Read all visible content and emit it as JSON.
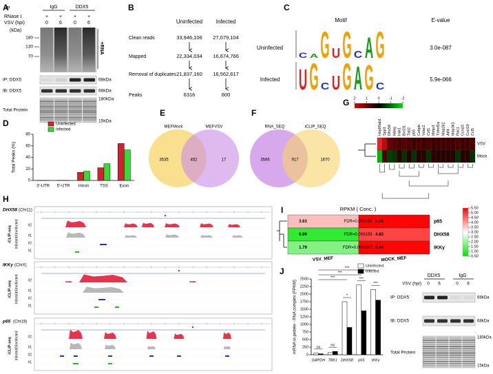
{
  "panel_labels": [
    "A",
    "B",
    "C",
    "D",
    "E",
    "F",
    "G",
    "H",
    "I",
    "J"
  ],
  "panel_a": {
    "ip": "IP",
    "igg": "IgG",
    "ddx5": "DDX5",
    "rnase": "RNase I",
    "plus": [
      "+",
      "+",
      "+",
      "+"
    ],
    "vsv": "VSV (hpi)",
    "hpi": [
      "0",
      "6",
      "0",
      "6"
    ],
    "kda": "(kDa)",
    "markers": [
      "180",
      "130",
      "70"
    ],
    "rna": "+RNA",
    "ip_label": "IP: DDX5",
    "ip_size": "68kDa",
    "ib_label": "IB: DDX5",
    "ib_size": "68kDa",
    "total_label": "Total Protein",
    "total_top": "180kDa",
    "total_bottom": "15kDa"
  },
  "panel_b": {
    "headers": [
      "Uninfected",
      "Infected"
    ],
    "rows": [
      [
        "Clean reads",
        "33,946,106",
        "27,079,104"
      ],
      [
        "Mapped",
        "22,334,034",
        "16,674,766"
      ],
      [
        "Removal of duplicates",
        "21,837,160",
        "16,562,617"
      ],
      [
        "Peaks",
        "6316",
        "600"
      ]
    ]
  },
  "panel_c": {
    "headers": [
      "Motif",
      "E-value"
    ],
    "rows": [
      {
        "name": "Uninfected",
        "letters": [
          "C",
          "A",
          "G",
          "U",
          "G",
          "C",
          "A",
          "G"
        ],
        "evalue": "3.0e-087"
      },
      {
        "name": "Infected",
        "letters": [
          "U",
          "G",
          "C",
          "U",
          "G",
          "A",
          "G",
          "C"
        ],
        "evalue": "5.9e-066"
      }
    ]
  },
  "panel_e": {
    "sets": [
      "MEFMock",
      "MEFVSV"
    ],
    "counts": [
      3535,
      452,
      17
    ]
  },
  "panel_f": {
    "sets": [
      "RNA_SEQ",
      "iCLIP_SEQ"
    ],
    "counts": [
      3586,
      917,
      1670
    ]
  },
  "panel_g": {
    "genes": [
      "Hsp90ab1",
      "Spp1",
      "Dhx58",
      "Ikbkg",
      "Irak1",
      "Bcl2l1",
      "Tab2",
      "p65",
      "Cebpb",
      "Vdac2",
      "Csf1",
      "Mmp3",
      "Tnfrsf1a",
      "Map2k2",
      "Atf4",
      "Map3k3",
      "Rac1",
      "Ccnd3",
      "Cxcl10",
      "Ccl5"
    ],
    "rows": [
      "VSV",
      "Mock"
    ],
    "cells": [
      [
        1.6,
        1.2,
        0.5,
        0.4,
        0.3,
        0.4,
        0.3,
        0.2,
        0.3,
        0.2,
        0.3,
        0.2,
        0.2,
        0.2,
        0.2,
        0.2,
        0.3,
        0.2,
        0.2,
        0.3
      ],
      [
        -1.2,
        0.3,
        -0.2,
        -0.1,
        0,
        -0.1,
        0,
        -0.1,
        0,
        0,
        -0.1,
        0,
        0,
        0,
        0,
        0,
        -0.1,
        0,
        0,
        -0.1
      ]
    ],
    "scale_ticks": [
      2,
      1,
      0,
      -1,
      -2
    ]
  },
  "panel_h": {
    "tracks": [
      {
        "gene": "DHX58",
        "chr": "(Chr11)"
      },
      {
        "gene": "IKKγ",
        "chr": "(ChrX)"
      },
      {
        "gene": "p65",
        "chr": "(Chr19)"
      }
    ],
    "method": "iCLIP-seq",
    "ratio": "Infected/Uninfected",
    "reps": [
      "#2",
      "#1",
      "#2",
      "#1"
    ]
  },
  "panel_i": {
    "title": "RPKM ( Conc. )",
    "columns": [
      "VSV_MEF",
      "MOCK_MEF"
    ],
    "rows": [
      "p65",
      "DHX58",
      "IKKγ"
    ],
    "values": [
      [
        3.63,
        5.46
      ],
      [
        0.99,
        4.83
      ],
      [
        1.79,
        5.44
      ]
    ],
    "fdr": [
      "FDR=0.000188",
      "FDR=0.000159",
      "FDR=0.0000007"
    ],
    "scale_ticks": [
      {
        "value": 5.5,
        "label": "5.50"
      },
      {
        "value": 5,
        "label": "5.00"
      },
      {
        "value": 4.5,
        "label": "4.50"
      },
      {
        "value": 4,
        "label": "4.00"
      },
      {
        "value": 3.5,
        "label": "3.50"
      },
      {
        "value": 3,
        "label": "3.00"
      },
      {
        "value": 2.5,
        "label": "2.50"
      },
      {
        "value": 2,
        "label": "2.00"
      },
      {
        "value": 1.5,
        "label": "1.50"
      },
      {
        "value": 1,
        "label": "1.00"
      },
      {
        "value": 0.5,
        "label": "0.50"
      }
    ]
  },
  "panel_j_blot": {
    "groups": [
      "DDX5",
      "IgG"
    ],
    "vsv": "VSV (hpi)",
    "hpi": [
      "0",
      "6",
      "0",
      "6"
    ],
    "ip_label": "IP: DDX5",
    "ip_size": "68kDa",
    "ib_label": "IB: DDX5",
    "ib_size": "68kDa",
    "total_label": "Total Protein",
    "total_top": "180kDa",
    "total_bottom": "15kDa"
  },
  "chart_data": [
    {
      "type": "bar",
      "ylabel": "Total Peaks (%)",
      "categories": [
        "3'-UTR",
        "5'-UTR",
        "Intron",
        "TSS",
        "Exon"
      ],
      "series": [
        {
          "name": "Uninfected",
          "color": "#d7202f",
          "values": [
            0.3,
            0.3,
            14,
            22,
            64
          ]
        },
        {
          "name": "Infected",
          "color": "#33dd33",
          "values": [
            0.2,
            0.2,
            16,
            29,
            53
          ]
        }
      ],
      "ylim": [
        0,
        80
      ],
      "yticks": [
        0,
        20,
        40,
        60,
        80
      ]
    },
    {
      "type": "bar",
      "ylabel": "mRNA in protein - RNA complex (FPKM)",
      "categories": [
        "GAPDH",
        "TBK1",
        "DHX58",
        "p65",
        "IKKγ"
      ],
      "series": [
        {
          "name": "Uninfected",
          "color": "#ffffff",
          "values": [
            50,
            70,
            1750,
            2300,
            2150
          ]
        },
        {
          "name": "Infected",
          "color": "#000000",
          "values": [
            30,
            110,
            900,
            1450,
            1800
          ]
        }
      ],
      "ylim": [
        0,
        2500
      ],
      "yticks": [
        0,
        250,
        500,
        750,
        1000,
        1250,
        1500,
        1750,
        2000,
        2250,
        2500
      ],
      "significance": [
        "ns",
        "ns",
        "*",
        "***",
        "***",
        "***",
        "***",
        "***"
      ]
    }
  ]
}
